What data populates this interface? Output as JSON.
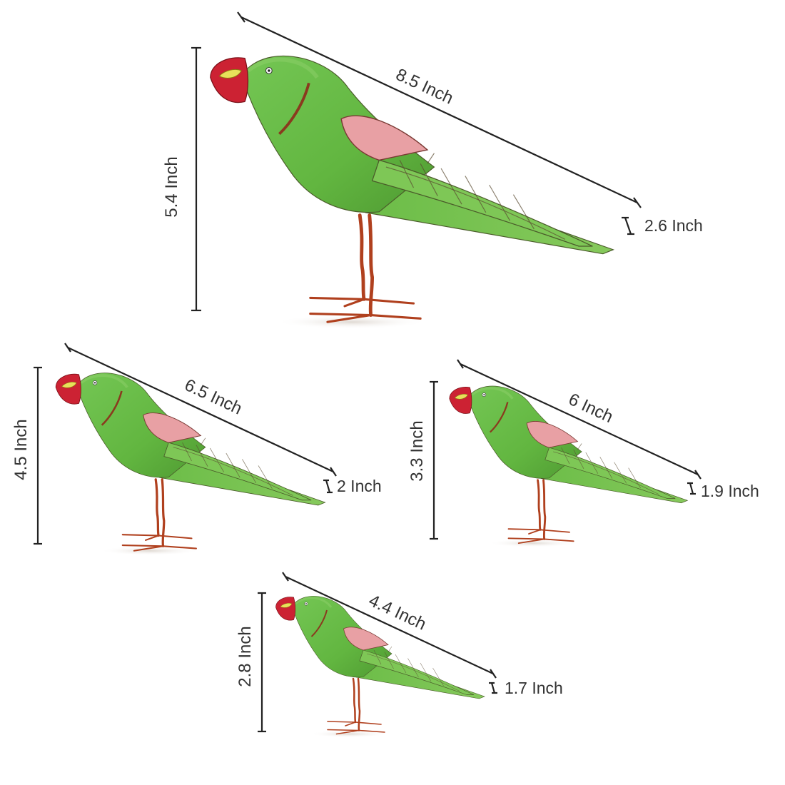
{
  "colors": {
    "body": "#6cc04a",
    "body_dark": "#4f9a32",
    "wing": "#e8a0a4",
    "beak": "#cc2233",
    "eye_patch": "#e8e05a",
    "legs": "#b0401e",
    "dimension_lines": "#222222"
  },
  "birds": [
    {
      "length_label": "8.5 Inch",
      "height_label": "5.4 Inch",
      "width_label": "2.6 Inch"
    },
    {
      "length_label": "6.5 Inch",
      "height_label": "4.5 Inch",
      "width_label": "2 Inch"
    },
    {
      "length_label": "6 Inch",
      "height_label": "3.3 Inch",
      "width_label": "1.9 Inch"
    },
    {
      "length_label": "4.4 Inch",
      "height_label": "2.8 Inch",
      "width_label": "1.7 Inch"
    }
  ]
}
